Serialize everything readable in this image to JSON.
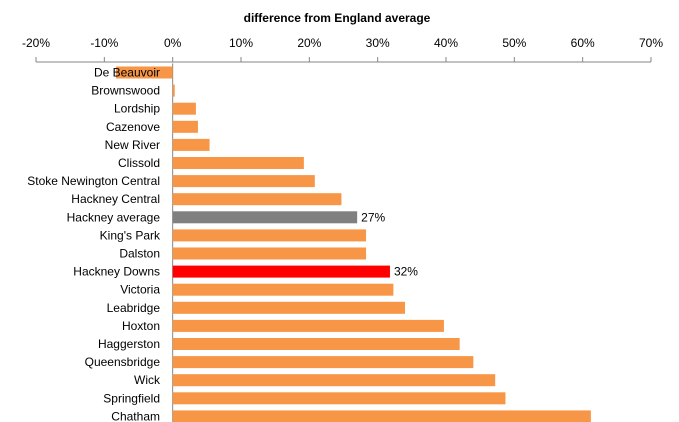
{
  "chart_data": {
    "type": "bar",
    "orientation": "horizontal",
    "title": "difference from England  average",
    "xlabel": "",
    "ylabel": "",
    "xlim": [
      -20,
      70
    ],
    "x_ticks": [
      "-20%",
      "-10%",
      "0%",
      "10%",
      "20%",
      "30%",
      "40%",
      "50%",
      "60%",
      "70%"
    ],
    "axis_position": "top",
    "grid": false,
    "legend": "none",
    "categories": [
      "De Beauvoir",
      "Brownswood",
      "Lordship",
      "Cazenove",
      "New River",
      "Clissold",
      "Stoke Newington Central",
      "Hackney Central",
      "Hackney average",
      "King's Park",
      "Dalston",
      "Hackney Downs",
      "Victoria",
      "Leabridge",
      "Hoxton",
      "Haggerston",
      "Queensbridge",
      "Wick",
      "Springfield",
      "Chatham"
    ],
    "values": [
      -8.3,
      0.3,
      3.4,
      3.7,
      5.4,
      19.2,
      20.8,
      24.7,
      27.0,
      28.3,
      28.3,
      31.8,
      32.3,
      34.0,
      39.7,
      42.0,
      44.0,
      47.2,
      48.7,
      61.2
    ],
    "colors": [
      "#F79646",
      "#F79646",
      "#F79646",
      "#F79646",
      "#F79646",
      "#F79646",
      "#F79646",
      "#F79646",
      "#808080",
      "#F79646",
      "#F79646",
      "#FF0000",
      "#F79646",
      "#F79646",
      "#F79646",
      "#F79646",
      "#F79646",
      "#F79646",
      "#F79646",
      "#F79646"
    ],
    "data_labels": [
      {
        "category": "Hackney average",
        "text": "27%"
      },
      {
        "category": "Hackney Downs",
        "text": "32%"
      }
    ]
  }
}
